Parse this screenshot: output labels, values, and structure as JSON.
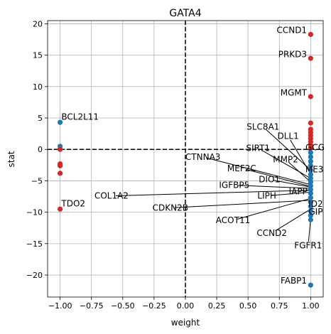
{
  "chart_data": {
    "type": "scatter",
    "title": "GATA4",
    "xlabel": "weight",
    "ylabel": "stat",
    "xlim": [
      -1.1,
      1.1
    ],
    "ylim": [
      -23.5,
      20.5
    ],
    "grid": true,
    "x_ticks": [
      -1.0,
      -0.75,
      -0.5,
      -0.25,
      0.0,
      0.25,
      0.5,
      0.75,
      1.0
    ],
    "x_tick_labels": [
      "−1.00",
      "−0.75",
      "−0.50",
      "−0.25",
      "0.00",
      "0.25",
      "0.50",
      "0.75",
      "1.00"
    ],
    "y_ticks": [
      -20,
      -15,
      -10,
      -5,
      0,
      5,
      10,
      15,
      20
    ],
    "y_tick_labels": [
      "−20",
      "−15",
      "−10",
      "−5",
      "0",
      "5",
      "10",
      "15",
      "20"
    ],
    "reference_lines": {
      "x": 0,
      "y": 0,
      "style": "dashed"
    },
    "colors": {
      "red": "#d62728",
      "blue": "#1f77b4"
    },
    "points": [
      {
        "x": -1.0,
        "y": 4.3,
        "color": "blue"
      },
      {
        "x": -1.0,
        "y": 0.5,
        "color": "blue"
      },
      {
        "x": -1.0,
        "y": 0.0,
        "color": "red"
      },
      {
        "x": -1.0,
        "y": -2.3,
        "color": "red"
      },
      {
        "x": -1.0,
        "y": -2.6,
        "color": "red"
      },
      {
        "x": -1.0,
        "y": -3.8,
        "color": "red"
      },
      {
        "x": -1.0,
        "y": -9.5,
        "color": "red"
      },
      {
        "x": 1.0,
        "y": 18.3,
        "color": "red"
      },
      {
        "x": 1.0,
        "y": 14.5,
        "color": "red"
      },
      {
        "x": 1.0,
        "y": 8.4,
        "color": "red"
      },
      {
        "x": 1.0,
        "y": 4.2,
        "color": "red"
      },
      {
        "x": 1.0,
        "y": 3.2,
        "color": "red"
      },
      {
        "x": 1.0,
        "y": 2.7,
        "color": "red"
      },
      {
        "x": 1.0,
        "y": 2.2,
        "color": "red"
      },
      {
        "x": 1.0,
        "y": 1.7,
        "color": "red"
      },
      {
        "x": 1.0,
        "y": 1.2,
        "color": "red"
      },
      {
        "x": 1.0,
        "y": 0.7,
        "color": "red"
      },
      {
        "x": 1.0,
        "y": 0.2,
        "color": "red"
      },
      {
        "x": 1.0,
        "y": -0.5,
        "color": "blue"
      },
      {
        "x": 1.0,
        "y": -1.2,
        "color": "blue"
      },
      {
        "x": 1.0,
        "y": -1.9,
        "color": "blue"
      },
      {
        "x": 1.0,
        "y": -2.6,
        "color": "blue"
      },
      {
        "x": 1.0,
        "y": -3.3,
        "color": "blue"
      },
      {
        "x": 1.0,
        "y": -4.0,
        "color": "blue"
      },
      {
        "x": 1.0,
        "y": -4.6,
        "color": "blue"
      },
      {
        "x": 1.0,
        "y": -5.2,
        "color": "blue"
      },
      {
        "x": 1.0,
        "y": -5.8,
        "color": "blue"
      },
      {
        "x": 1.0,
        "y": -6.4,
        "color": "blue"
      },
      {
        "x": 1.0,
        "y": -7.0,
        "color": "blue"
      },
      {
        "x": 1.0,
        "y": -7.7,
        "color": "blue"
      },
      {
        "x": 1.0,
        "y": -8.4,
        "color": "blue"
      },
      {
        "x": 1.0,
        "y": -9.1,
        "color": "blue"
      },
      {
        "x": 1.0,
        "y": -9.8,
        "color": "blue"
      },
      {
        "x": 1.0,
        "y": -10.5,
        "color": "blue"
      },
      {
        "x": 1.0,
        "y": -11.2,
        "color": "blue"
      },
      {
        "x": 1.0,
        "y": -21.6,
        "color": "blue"
      }
    ],
    "labels": [
      {
        "text": "CCND1",
        "x": 1.0,
        "y": 18.3,
        "tx": 0.97,
        "ty": 19.0,
        "anchor": "end",
        "arrow": false
      },
      {
        "text": "PRKD3",
        "x": 1.0,
        "y": 14.5,
        "tx": 0.97,
        "ty": 15.1,
        "anchor": "end",
        "arrow": false
      },
      {
        "text": "MGMT",
        "x": 1.0,
        "y": 8.4,
        "tx": 0.97,
        "ty": 9.0,
        "anchor": "end",
        "arrow": false
      },
      {
        "text": "BCL2L11",
        "x": -1.0,
        "y": 4.3,
        "tx": -0.99,
        "ty": 5.2,
        "anchor": "start",
        "arrow": false
      },
      {
        "text": "TDO2",
        "x": -1.0,
        "y": -9.5,
        "tx": -0.99,
        "ty": -8.6,
        "anchor": "start",
        "arrow": false
      },
      {
        "text": "FABP1",
        "x": 1.0,
        "y": -21.6,
        "tx": 0.97,
        "ty": -20.9,
        "anchor": "end",
        "arrow": false
      },
      {
        "text": "SLC8A1",
        "x": 1.0,
        "y": -3.3,
        "tx": 0.62,
        "ty": 3.6,
        "anchor": "middle",
        "arrow": true
      },
      {
        "text": "DLL1",
        "x": 1.0,
        "y": -3.9,
        "tx": 0.82,
        "ty": 2.1,
        "anchor": "middle",
        "arrow": true
      },
      {
        "text": "GCG",
        "x": 1.0,
        "y": -0.3,
        "tx": 1.035,
        "ty": 0.3,
        "anchor": "middle",
        "arrow": false
      },
      {
        "text": "SIRT1",
        "x": 1.0,
        "y": -4.6,
        "tx": 0.58,
        "ty": 0.2,
        "anchor": "middle",
        "arrow": true
      },
      {
        "text": "MMP2",
        "x": 1.0,
        "y": -5.2,
        "tx": 0.8,
        "ty": -1.6,
        "anchor": "middle",
        "arrow": true
      },
      {
        "text": "CTNNA3",
        "x": 1.0,
        "y": -5.6,
        "tx": 0.14,
        "ty": -1.2,
        "anchor": "middle",
        "arrow": true
      },
      {
        "text": "MEF2C",
        "x": 1.0,
        "y": -5.9,
        "tx": 0.45,
        "ty": -3.0,
        "anchor": "middle",
        "arrow": true
      },
      {
        "text": "ME3",
        "x": 1.0,
        "y": -3.0,
        "tx": 1.03,
        "ty": -3.2,
        "anchor": "middle",
        "arrow": false
      },
      {
        "text": "DIO1",
        "x": 1.0,
        "y": -6.0,
        "tx": 0.67,
        "ty": -4.8,
        "anchor": "middle",
        "arrow": true
      },
      {
        "text": "IGFBP5",
        "x": 1.0,
        "y": -6.2,
        "tx": 0.39,
        "ty": -5.7,
        "anchor": "middle",
        "arrow": true
      },
      {
        "text": "IAPP",
        "x": 1.0,
        "y": -6.4,
        "tx": 0.9,
        "ty": -6.7,
        "anchor": "middle",
        "arrow": true
      },
      {
        "text": "LIPH",
        "x": 1.0,
        "y": -6.8,
        "tx": 0.65,
        "ty": -7.4,
        "anchor": "middle",
        "arrow": true
      },
      {
        "text": "COL1A2",
        "x": 1.0,
        "y": -6.5,
        "tx": -0.59,
        "ty": -7.4,
        "anchor": "middle",
        "arrow": true
      },
      {
        "text": "ID2",
        "x": 1.0,
        "y": -8.0,
        "tx": 1.04,
        "ty": -8.7,
        "anchor": "middle",
        "arrow": false
      },
      {
        "text": "CDKN2B",
        "x": 1.0,
        "y": -8.1,
        "tx": -0.12,
        "ty": -9.3,
        "anchor": "middle",
        "arrow": true
      },
      {
        "text": "GIP",
        "x": 1.0,
        "y": -9.2,
        "tx": 1.04,
        "ty": -9.9,
        "anchor": "middle",
        "arrow": false
      },
      {
        "text": "ACOT11",
        "x": 1.0,
        "y": -7.8,
        "tx": 0.38,
        "ty": -11.3,
        "anchor": "middle",
        "arrow": true
      },
      {
        "text": "CCND2",
        "x": 1.0,
        "y": -9.5,
        "tx": 0.69,
        "ty": -13.3,
        "anchor": "middle",
        "arrow": true
      },
      {
        "text": "FGFR1",
        "x": 1.0,
        "y": -11.0,
        "tx": 0.98,
        "ty": -15.3,
        "anchor": "middle",
        "arrow": true
      }
    ]
  }
}
